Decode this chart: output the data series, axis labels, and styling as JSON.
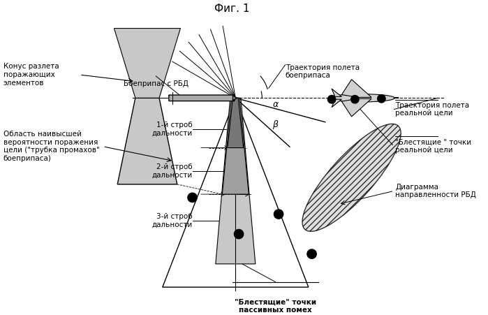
{
  "title": "Фиг. 1",
  "bg_color": "#ffffff",
  "label_blest_passive": "\"Блестящие\" точки\nпассивных помех",
  "label_diagram": "Диаграмма\nнаправленности РБД",
  "label_blest_real": "\"Блестящие \" точки\nреальной цели",
  "label_oblast": "Область наивысшей\nвероятности поражения\nцели (\"трубка промахов\"\nбоеприпаса)",
  "label_konus": "Конус разлета\nпоражающих\nэлементов",
  "label_strob3": "3-й строб\nдальности",
  "label_strob2": "2-й строб\nдальности",
  "label_strob1": "1-й строб\nдальности",
  "label_boepr": "Боеприпас с РБД",
  "label_traj_real": "Траектория полета\nреальной цели",
  "label_traj_boepr": "Траектория полета\nбоеприпаса",
  "label_alpha": "α",
  "label_beta": "β"
}
